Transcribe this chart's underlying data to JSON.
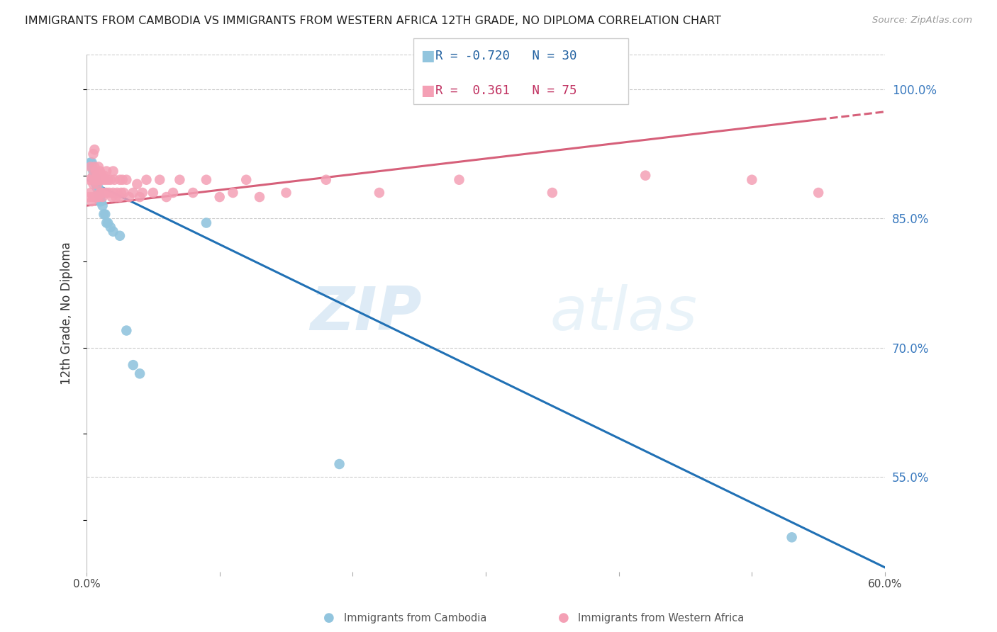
{
  "title": "IMMIGRANTS FROM CAMBODIA VS IMMIGRANTS FROM WESTERN AFRICA 12TH GRADE, NO DIPLOMA CORRELATION CHART",
  "source": "Source: ZipAtlas.com",
  "ylabel": "12th Grade, No Diploma",
  "xlim": [
    0.0,
    0.6
  ],
  "ylim": [
    0.44,
    1.04
  ],
  "xticks": [
    0.0,
    0.1,
    0.2,
    0.3,
    0.4,
    0.5,
    0.6
  ],
  "yticks_right": [
    0.55,
    0.7,
    0.85,
    1.0
  ],
  "ytick_right_labels": [
    "55.0%",
    "70.0%",
    "85.0%",
    "100.0%"
  ],
  "cambodia_color": "#92c5de",
  "western_africa_color": "#f4a0b5",
  "cambodia_label": "Immigrants from Cambodia",
  "western_africa_label": "Immigrants from Western Africa",
  "cambodia_R": -0.72,
  "cambodia_N": 30,
  "western_africa_R": 0.361,
  "western_africa_N": 75,
  "watermark_zip": "ZIP",
  "watermark_atlas": "atlas",
  "cam_line_x0": 0.0,
  "cam_line_y0": 0.895,
  "cam_line_x1": 0.6,
  "cam_line_y1": 0.445,
  "wa_line_x0": 0.0,
  "wa_line_y0": 0.865,
  "wa_line_x1": 0.55,
  "wa_line_y1": 0.965,
  "wa_line_dash_x0": 0.55,
  "wa_line_dash_y0": 0.965,
  "wa_line_dash_x1": 0.6,
  "wa_line_dash_y1": 0.974,
  "cambodia_x": [
    0.003,
    0.004,
    0.004,
    0.005,
    0.005,
    0.006,
    0.006,
    0.007,
    0.007,
    0.008,
    0.008,
    0.009,
    0.009,
    0.01,
    0.01,
    0.011,
    0.012,
    0.013,
    0.014,
    0.015,
    0.016,
    0.018,
    0.02,
    0.025,
    0.03,
    0.035,
    0.04,
    0.09,
    0.19,
    0.53
  ],
  "cambodia_y": [
    0.915,
    0.915,
    0.91,
    0.905,
    0.9,
    0.9,
    0.895,
    0.895,
    0.89,
    0.89,
    0.885,
    0.885,
    0.88,
    0.875,
    0.87,
    0.87,
    0.865,
    0.855,
    0.855,
    0.845,
    0.845,
    0.84,
    0.835,
    0.83,
    0.72,
    0.68,
    0.67,
    0.845,
    0.565,
    0.48
  ],
  "wa_x": [
    0.002,
    0.002,
    0.003,
    0.003,
    0.004,
    0.004,
    0.005,
    0.005,
    0.005,
    0.005,
    0.006,
    0.006,
    0.006,
    0.006,
    0.007,
    0.007,
    0.007,
    0.008,
    0.008,
    0.008,
    0.009,
    0.009,
    0.009,
    0.01,
    0.01,
    0.01,
    0.011,
    0.011,
    0.012,
    0.012,
    0.013,
    0.013,
    0.014,
    0.015,
    0.015,
    0.016,
    0.017,
    0.018,
    0.019,
    0.02,
    0.02,
    0.021,
    0.022,
    0.023,
    0.025,
    0.025,
    0.026,
    0.027,
    0.028,
    0.03,
    0.032,
    0.035,
    0.038,
    0.04,
    0.042,
    0.045,
    0.05,
    0.055,
    0.06,
    0.065,
    0.07,
    0.08,
    0.09,
    0.1,
    0.11,
    0.12,
    0.13,
    0.15,
    0.18,
    0.22,
    0.28,
    0.35,
    0.42,
    0.5,
    0.55
  ],
  "wa_y": [
    0.895,
    0.875,
    0.91,
    0.88,
    0.895,
    0.87,
    0.925,
    0.9,
    0.89,
    0.875,
    0.93,
    0.91,
    0.895,
    0.875,
    0.905,
    0.895,
    0.875,
    0.9,
    0.89,
    0.875,
    0.91,
    0.895,
    0.875,
    0.905,
    0.895,
    0.88,
    0.9,
    0.88,
    0.895,
    0.875,
    0.9,
    0.88,
    0.895,
    0.905,
    0.88,
    0.895,
    0.88,
    0.895,
    0.875,
    0.905,
    0.88,
    0.895,
    0.875,
    0.88,
    0.895,
    0.875,
    0.88,
    0.895,
    0.88,
    0.895,
    0.875,
    0.88,
    0.89,
    0.875,
    0.88,
    0.895,
    0.88,
    0.895,
    0.875,
    0.88,
    0.895,
    0.88,
    0.895,
    0.875,
    0.88,
    0.895,
    0.875,
    0.88,
    0.895,
    0.88,
    0.895,
    0.88,
    0.9,
    0.895,
    0.88
  ]
}
